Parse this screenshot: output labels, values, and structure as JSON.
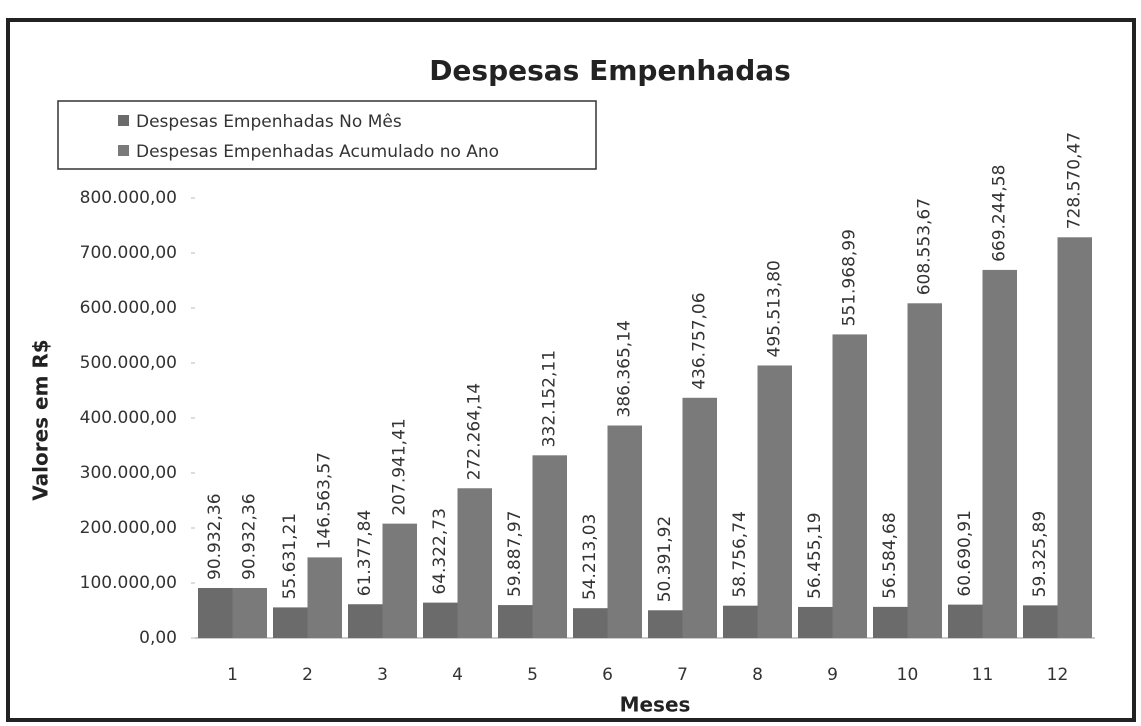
{
  "chart_data": {
    "type": "bar",
    "title": "Despesas Empenhadas",
    "x_label": "Meses",
    "y_label": "Valores em  R$",
    "categories": [
      1,
      2,
      3,
      4,
      5,
      6,
      7,
      8,
      9,
      10,
      11,
      12
    ],
    "series": [
      {
        "name": "Despesas Empenhadas No Mês",
        "color": "#6b6b6b",
        "values": [
          90932.36,
          55631.21,
          61377.84,
          64322.73,
          59887.97,
          54213.03,
          50391.92,
          58756.74,
          56455.19,
          56584.68,
          60690.91,
          59325.89
        ],
        "value_labels": [
          "90.932,36",
          "55.631,21",
          "61.377,84",
          "64.322,73",
          "59.887,97",
          "54.213,03",
          "50.391,92",
          "58.756,74",
          "56.455,19",
          "56.584,68",
          "60.690,91",
          "59.325,89"
        ]
      },
      {
        "name": "Despesas Empenhadas Acumulado no Ano",
        "color": "#7a7a7a",
        "values": [
          90932.36,
          146563.57,
          207941.41,
          272264.14,
          332152.11,
          386365.14,
          436757.06,
          495513.8,
          551968.99,
          608553.67,
          669244.58,
          728570.47
        ],
        "value_labels": [
          "90.932,36",
          "146.563,57",
          "207.941,41",
          "272.264,14",
          "332.152,11",
          "386.365,14",
          "436.757,06",
          "495.513,80",
          "551.968,99",
          "608.553,67",
          "669.244,58",
          "728.570,47"
        ]
      }
    ],
    "ylim": [
      0,
      800000
    ],
    "yticks": [
      {
        "value": 0,
        "label": "0,00"
      },
      {
        "value": 100000,
        "label": "100.000,00"
      },
      {
        "value": 200000,
        "label": "200.000,00"
      },
      {
        "value": 300000,
        "label": "300.000,00"
      },
      {
        "value": 400000,
        "label": "400.000,00"
      },
      {
        "value": 500000,
        "label": "500.000,00"
      },
      {
        "value": 600000,
        "label": "600.000,00"
      },
      {
        "value": 700000,
        "label": "700.000,00"
      },
      {
        "value": 800000,
        "label": "800.000,00"
      }
    ],
    "grid": false,
    "legend": "top-left"
  }
}
